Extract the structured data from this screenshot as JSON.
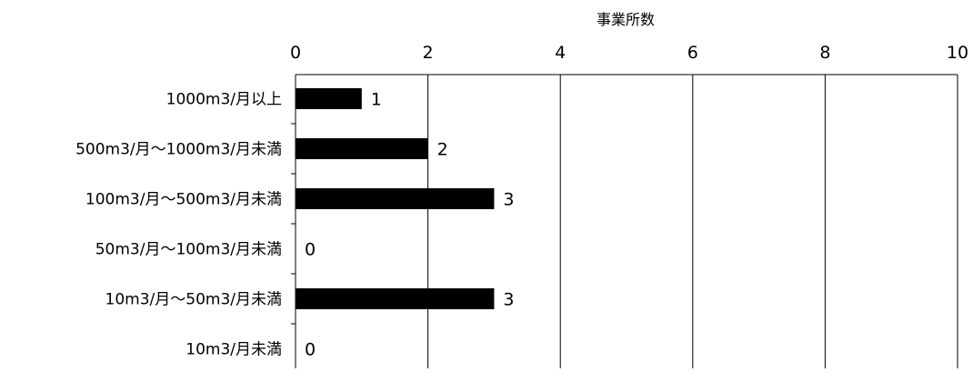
{
  "chart_data": {
    "type": "bar",
    "orientation": "horizontal",
    "title": "",
    "xlabel": "事業所数",
    "ylabel": "",
    "categories": [
      "1000m3/月以上",
      "500m3/月～1000m3/月未満",
      "100m3/月～500m3/月未満",
      "50m3/月～100m3/月未満",
      "10m3/月～50m3/月未満",
      "10m3/月未満"
    ],
    "values": [
      1,
      2,
      3,
      0,
      3,
      0
    ],
    "data_labels": [
      "1",
      "2",
      "3",
      "0",
      "3",
      "0"
    ],
    "xlim": [
      0,
      10
    ],
    "x_ticks": [
      0,
      2,
      4,
      6,
      8,
      10
    ],
    "x_tick_labels": [
      "0",
      "2",
      "4",
      "6",
      "8",
      "10"
    ],
    "x_axis_position": "top",
    "grid": true,
    "legend": "none",
    "colors": {
      "bar": "#000000",
      "grid": "#000000",
      "background": "#ffffff"
    }
  }
}
